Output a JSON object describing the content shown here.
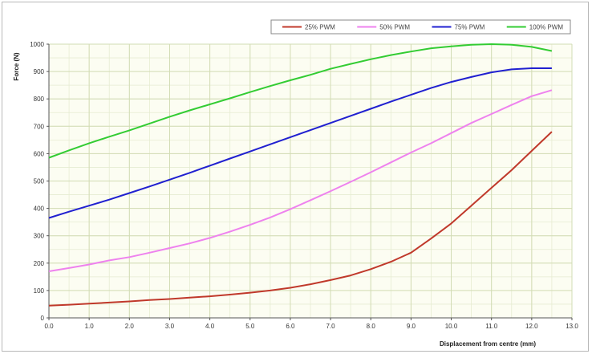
{
  "chart_data": {
    "type": "line",
    "title": "",
    "xlabel": "Displacement from centre (mm)",
    "ylabel": "Force (N)",
    "xlim": [
      0,
      13
    ],
    "ylim": [
      0,
      1000
    ],
    "x_ticks": [
      "0.0",
      "1.0",
      "2.0",
      "3.0",
      "4.0",
      "5.0",
      "6.0",
      "7.0",
      "8.0",
      "9.0",
      "10.0",
      "11.0",
      "12.0",
      "13.0"
    ],
    "y_ticks": [
      "0",
      "100",
      "200",
      "300",
      "400",
      "500",
      "600",
      "700",
      "800",
      "900",
      "1000"
    ],
    "grid": true,
    "legend_position": "top",
    "x": [
      0,
      0.5,
      1.0,
      1.5,
      2.0,
      2.5,
      3.0,
      3.5,
      4.0,
      4.5,
      5.0,
      5.5,
      6.0,
      6.5,
      7.0,
      7.5,
      8.0,
      8.5,
      9.0,
      9.5,
      10.0,
      10.5,
      11.0,
      11.5,
      12.0,
      12.5
    ],
    "series": [
      {
        "name": "25% PWM",
        "color": "#c0392b",
        "values": [
          45,
          48,
          52,
          56,
          60,
          65,
          69,
          74,
          79,
          85,
          92,
          100,
          110,
          123,
          138,
          155,
          178,
          205,
          238,
          290,
          345,
          410,
          475,
          540,
          610,
          680
        ]
      },
      {
        "name": "50% PWM",
        "color": "#ee82ee",
        "values": [
          170,
          182,
          195,
          210,
          222,
          238,
          255,
          272,
          292,
          315,
          340,
          367,
          397,
          430,
          463,
          497,
          532,
          568,
          604,
          638,
          675,
          712,
          745,
          778,
          810,
          832
        ]
      },
      {
        "name": "75% PWM",
        "color": "#2020d0",
        "values": [
          365,
          388,
          410,
          432,
          456,
          480,
          505,
          530,
          556,
          582,
          608,
          634,
          660,
          686,
          712,
          738,
          764,
          790,
          815,
          840,
          862,
          880,
          897,
          908,
          912,
          912
        ]
      },
      {
        "name": "100% PWM",
        "color": "#33cc33",
        "values": [
          585,
          612,
          638,
          662,
          685,
          710,
          735,
          758,
          780,
          802,
          825,
          847,
          868,
          888,
          910,
          928,
          945,
          960,
          973,
          985,
          992,
          998,
          1000,
          998,
          990,
          975
        ]
      }
    ]
  }
}
